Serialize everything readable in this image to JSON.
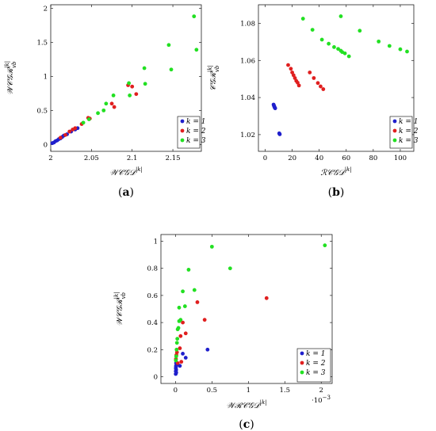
{
  "chart_data": [
    {
      "type": "scatter",
      "panel_label": "a",
      "xlabel": "𝒲𝒞𝒢𝒟",
      "xlabel_sup": "|k|",
      "ylabel": "𝒲𝒞𝒢ℛ",
      "ylabel_sup": "|k|",
      "ylabel_sub": "vb",
      "xlim": [
        2.0,
        2.185
      ],
      "ylim": [
        -0.1,
        2.05
      ],
      "xticks": [
        2,
        2.05,
        2.1,
        2.15
      ],
      "xtick_labels": [
        "2",
        "2.05",
        "2.1",
        "2.15"
      ],
      "yticks": [
        0,
        0.5,
        1,
        1.5,
        2
      ],
      "ytick_labels": [
        "0",
        "0.5",
        "1",
        "1.5",
        "2"
      ],
      "legend": "bottom-right",
      "series": [
        {
          "name": "k = 1",
          "color": "#1f1fcc",
          "points": [
            [
              2.002,
              0.02
            ],
            [
              2.004,
              0.03
            ],
            [
              2.006,
              0.05
            ],
            [
              2.008,
              0.06
            ],
            [
              2.01,
              0.08
            ],
            [
              2.012,
              0.09
            ],
            [
              2.014,
              0.11
            ],
            [
              2.016,
              0.13
            ],
            [
              2.02,
              0.15
            ],
            [
              2.025,
              0.19
            ],
            [
              2.03,
              0.22
            ],
            [
              2.033,
              0.24
            ]
          ]
        },
        {
          "name": "k = 2",
          "color": "#e01f1f",
          "points": [
            [
              2.012,
              0.1
            ],
            [
              2.018,
              0.14
            ],
            [
              2.023,
              0.19
            ],
            [
              2.027,
              0.22
            ],
            [
              2.03,
              0.24
            ],
            [
              2.038,
              0.3
            ],
            [
              2.046,
              0.39
            ],
            [
              2.048,
              0.38
            ],
            [
              2.075,
              0.6
            ],
            [
              2.078,
              0.55
            ],
            [
              2.095,
              0.87
            ],
            [
              2.1,
              0.85
            ],
            [
              2.105,
              0.74
            ]
          ]
        },
        {
          "name": "k = 3",
          "color": "#22e022",
          "points": [
            [
              2.04,
              0.32
            ],
            [
              2.047,
              0.37
            ],
            [
              2.058,
              0.46
            ],
            [
              2.065,
              0.5
            ],
            [
              2.068,
              0.6
            ],
            [
              2.077,
              0.72
            ],
            [
              2.096,
              0.9
            ],
            [
              2.097,
              0.72
            ],
            [
              2.115,
              1.12
            ],
            [
              2.116,
              0.89
            ],
            [
              2.145,
              1.46
            ],
            [
              2.148,
              1.1
            ],
            [
              2.176,
              1.88
            ],
            [
              2.179,
              1.39
            ]
          ]
        }
      ]
    },
    {
      "type": "scatter",
      "panel_label": "b",
      "xlabel": "ℛ𝒞𝒢𝒟",
      "xlabel_sup": "|k|",
      "ylabel": "𝒞𝒢ℛ",
      "ylabel_sup": "|k|",
      "ylabel_sub": "vb",
      "xlim": [
        -5,
        110
      ],
      "ylim": [
        1.011,
        1.09
      ],
      "xticks": [
        0,
        20,
        40,
        60,
        80,
        100
      ],
      "xtick_labels": [
        "0",
        "20",
        "40",
        "60",
        "80",
        "100"
      ],
      "yticks": [
        1.02,
        1.04,
        1.06,
        1.08
      ],
      "ytick_labels": [
        "1.02",
        "1.04",
        "1.06",
        "1.08"
      ],
      "legend": "bottom-right",
      "series": [
        {
          "name": "k = 1",
          "color": "#1f1fcc",
          "points": [
            [
              6.2,
              1.0362
            ],
            [
              6.4,
              1.0358
            ],
            [
              6.6,
              1.0354
            ],
            [
              6.8,
              1.035
            ],
            [
              7.0,
              1.0347
            ],
            [
              7.2,
              1.0344
            ],
            [
              7.4,
              1.0342
            ],
            [
              10.4,
              1.0207
            ],
            [
              10.6,
              1.0204
            ],
            [
              10.8,
              1.0202
            ]
          ]
        },
        {
          "name": "k = 2",
          "color": "#e01f1f",
          "points": [
            [
              17.0,
              1.0575
            ],
            [
              19.0,
              1.0555
            ],
            [
              20.0,
              1.0535
            ],
            [
              21.0,
              1.052
            ],
            [
              22.0,
              1.0505
            ],
            [
              23.0,
              1.049
            ],
            [
              24.0,
              1.048
            ],
            [
              25.0,
              1.0465
            ],
            [
              33.0,
              1.0535
            ],
            [
              36.0,
              1.0505
            ],
            [
              39.0,
              1.0478
            ],
            [
              41.0,
              1.046
            ],
            [
              43.0,
              1.0445
            ]
          ]
        },
        {
          "name": "k = 3",
          "color": "#22e022",
          "points": [
            [
              28.0,
              1.0825
            ],
            [
              35.0,
              1.0765
            ],
            [
              42.0,
              1.0712
            ],
            [
              47.0,
              1.069
            ],
            [
              51.0,
              1.0672
            ],
            [
              54.0,
              1.0662
            ],
            [
              56.0,
              1.0652
            ],
            [
              57.0,
              1.0645
            ],
            [
              59.0,
              1.0638
            ],
            [
              62.0,
              1.0622
            ],
            [
              56.0,
              1.0838
            ],
            [
              70.0,
              1.076
            ],
            [
              84.0,
              1.0702
            ],
            [
              92.0,
              1.0678
            ],
            [
              100.0,
              1.066
            ],
            [
              105.0,
              1.0648
            ]
          ]
        }
      ]
    },
    {
      "type": "scatter",
      "panel_label": "c",
      "xlabel": "𝒲ℛ𝒞𝒢𝒟",
      "xlabel_sup": "|k|",
      "ylabel": "𝒲𝒞𝒢ℛ",
      "ylabel_sup": "|k|",
      "ylabel_sub": "vb",
      "x_multiplier": "·10",
      "x_multiplier_exp": "−3",
      "xlim": [
        -0.0002,
        0.00215
      ],
      "ylim": [
        -0.05,
        1.05
      ],
      "xticks": [
        0,
        0.0005,
        0.001,
        0.0015,
        0.002
      ],
      "xtick_labels": [
        "0",
        "0.5",
        "1",
        "1.5",
        "2"
      ],
      "yticks": [
        0,
        0.2,
        0.4,
        0.6,
        0.8,
        1
      ],
      "ytick_labels": [
        "0",
        "0.2",
        "0.4",
        "0.6",
        "0.8",
        "1"
      ],
      "legend": "bottom-right",
      "series": [
        {
          "name": "k = 1",
          "color": "#1f1fcc",
          "points": [
            [
              3e-06,
              0.02
            ],
            [
              4e-06,
              0.04
            ],
            [
              5e-06,
              0.06
            ],
            [
              6e-06,
              0.07
            ],
            [
              7e-06,
              0.08
            ],
            [
              8e-06,
              0.1
            ],
            [
              9e-06,
              0.05
            ],
            [
              1e-05,
              0.03
            ],
            [
              3e-05,
              0.09
            ],
            [
              6e-05,
              0.08
            ],
            [
              0.0001,
              0.17
            ],
            [
              0.00014,
              0.14
            ],
            [
              0.00044,
              0.2
            ]
          ]
        },
        {
          "name": "k = 2",
          "color": "#e01f1f",
          "points": [
            [
              6e-06,
              0.13
            ],
            [
              1.2e-05,
              0.16
            ],
            [
              2e-05,
              0.18
            ],
            [
              3e-05,
              0.1
            ],
            [
              6e-05,
              0.21
            ],
            [
              7e-05,
              0.3
            ],
            [
              8e-05,
              0.11
            ],
            [
              0.0001,
              0.4
            ],
            [
              0.00014,
              0.32
            ],
            [
              0.0003,
              0.55
            ],
            [
              0.0004,
              0.42
            ],
            [
              0.00125,
              0.58
            ]
          ]
        },
        {
          "name": "k = 3",
          "color": "#22e022",
          "points": [
            [
              5e-06,
              0.12
            ],
            [
              1e-05,
              0.15
            ],
            [
              1.5e-05,
              0.2
            ],
            [
              2e-05,
              0.25
            ],
            [
              2.5e-05,
              0.28
            ],
            [
              3e-05,
              0.35
            ],
            [
              4e-05,
              0.36
            ],
            [
              5e-05,
              0.41
            ],
            [
              5e-05,
              0.51
            ],
            [
              7e-05,
              0.42
            ],
            [
              0.0001,
              0.63
            ],
            [
              0.00013,
              0.52
            ],
            [
              0.00018,
              0.79
            ],
            [
              0.00026,
              0.64
            ],
            [
              0.0005,
              0.96
            ],
            [
              0.00075,
              0.8
            ],
            [
              0.00205,
              0.97
            ]
          ]
        }
      ]
    }
  ]
}
